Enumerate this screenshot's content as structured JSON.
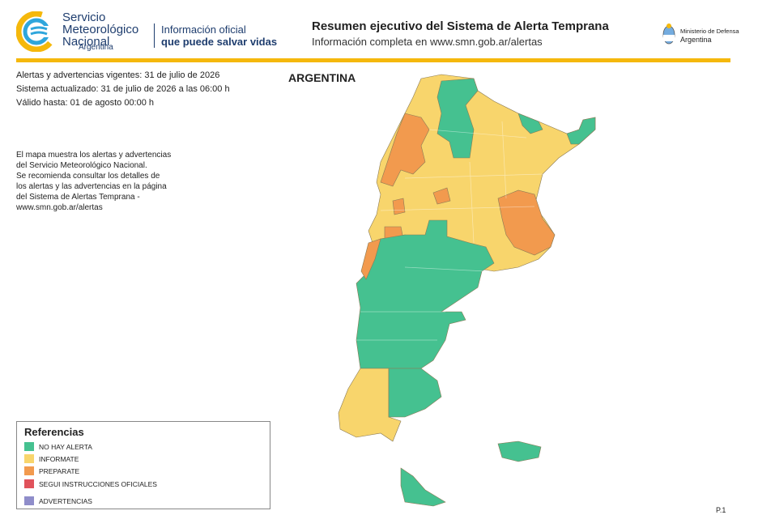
{
  "header": {
    "org_name": [
      "Servicio",
      "Meteorológico",
      "Nacional"
    ],
    "org_country": "Argentina",
    "tagline": [
      "Información oficial",
      "que puede salvar vidas"
    ],
    "title": "Resumen ejecutivo del Sistema de Alerta Temprana",
    "subtitle": "Información completa en www.smn.gob.ar/alertas",
    "ministry": [
      "Ministerio de Defensa",
      "Argentina"
    ]
  },
  "info": [
    "Alertas y advertencias vigentes: 31 de julio de 2026",
    "Sistema actualizado: 31 de julio de 2026 a las 06:00 h",
    "Válido hasta: 01 de agosto 00:00 h"
  ],
  "description": [
    "El mapa muestra los alertas y advertencias",
    "del Servicio Meteorológico Nacional.",
    "Se recomienda consultar los detalles de",
    "los alertas y las advertencias en la página",
    "del Sistema de Alertas Temprana -",
    "www.smn.gob.ar/alertas"
  ],
  "map": {
    "title": "ARGENTINA"
  },
  "legend": {
    "title": "Referencias",
    "items": [
      {
        "label": "NO HAY ALERTA",
        "color": "#45c190"
      },
      {
        "label": "INFORMATE",
        "color": "#f8d56c"
      },
      {
        "label": "PREPARATE",
        "color": "#f29a4e"
      },
      {
        "label": "SEGUI INSTRUCCIONES OFICIALES",
        "color": "#e0525b"
      },
      {
        "label": "ADVERTENCIAS",
        "color": "#8f8dca"
      }
    ]
  },
  "page": "P.1"
}
